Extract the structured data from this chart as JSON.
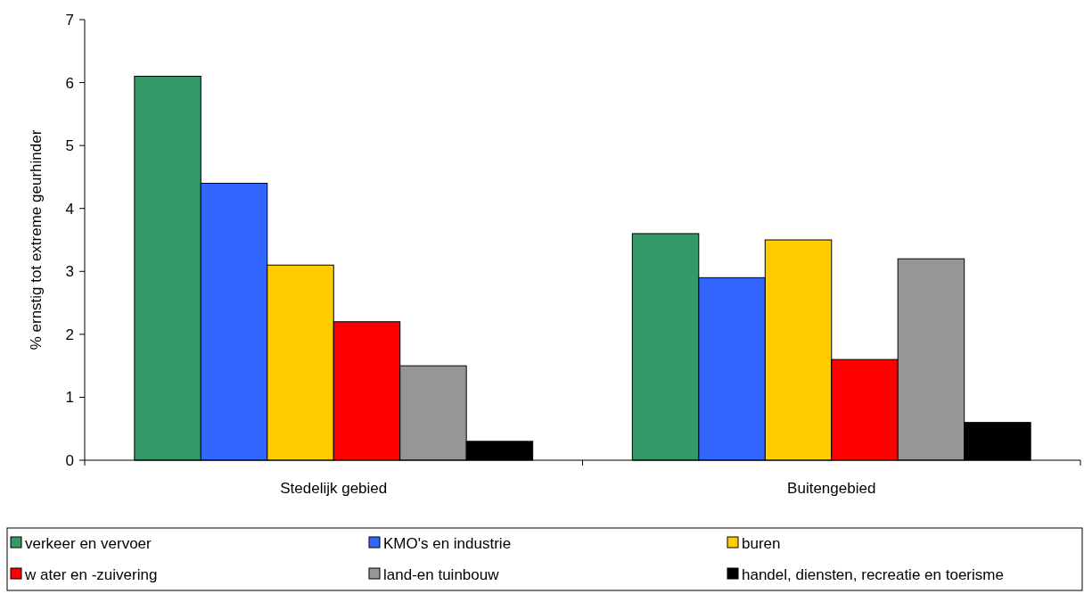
{
  "chart_data": {
    "type": "bar",
    "ylabel": "% ernstig tot extreme geurhinder",
    "categories": [
      "Stedelijk gebied",
      "Buitengebied"
    ],
    "series": [
      {
        "name": "verkeer en vervoer",
        "color": "#339966",
        "values": [
          6.1,
          3.6
        ]
      },
      {
        "name": "KMO's en industrie",
        "color": "#3366ff",
        "values": [
          4.4,
          2.9
        ]
      },
      {
        "name": "buren",
        "color": "#ffcc00",
        "values": [
          3.1,
          3.5
        ]
      },
      {
        "name": "w ater en -zuivering",
        "color": "#ff0000",
        "values": [
          2.2,
          1.6
        ]
      },
      {
        "name": "land-en tuinbouw",
        "color": "#969696",
        "values": [
          1.5,
          3.2
        ]
      },
      {
        "name": "handel, diensten, recreatie en toerisme",
        "color": "#000000",
        "values": [
          0.3,
          0.6
        ]
      }
    ],
    "ylim": [
      0,
      7
    ],
    "yticks": [
      0,
      1,
      2,
      3,
      4,
      5,
      6,
      7
    ],
    "grid": false,
    "legend": "bottom"
  }
}
